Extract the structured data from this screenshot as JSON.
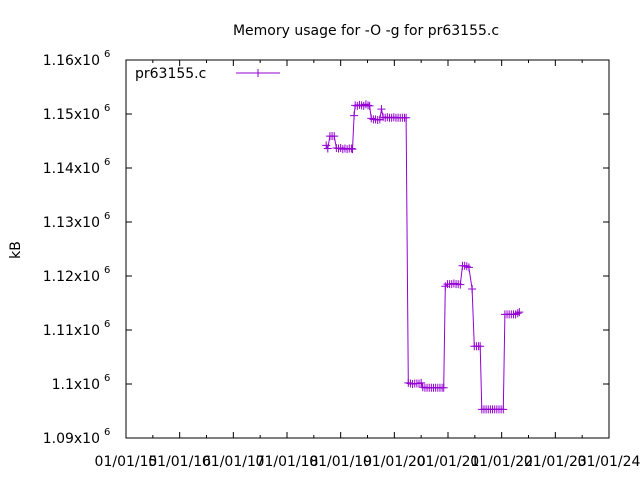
{
  "chart_data": {
    "type": "line",
    "title": "Memory usage for -O -g for pr63155.c",
    "ylabel": "kB",
    "xlabel": "",
    "ylim": [
      1090000,
      1160000
    ],
    "xlim": [
      0,
      9
    ],
    "x_tick_labels": [
      "01/01/15",
      "01/01/16",
      "01/01/17",
      "01/01/18",
      "01/01/19",
      "01/01/20",
      "01/01/21",
      "01/01/22",
      "01/01/23",
      "01/01/24"
    ],
    "y_ticks": [
      {
        "value": 1090000,
        "mantissa": "1.09x10",
        "exp": "6"
      },
      {
        "value": 1100000,
        "mantissa": "1.1x10",
        "exp": "6"
      },
      {
        "value": 1110000,
        "mantissa": "1.11x10",
        "exp": "6"
      },
      {
        "value": 1120000,
        "mantissa": "1.12x10",
        "exp": "6"
      },
      {
        "value": 1130000,
        "mantissa": "1.13x10",
        "exp": "6"
      },
      {
        "value": 1140000,
        "mantissa": "1.14x10",
        "exp": "6"
      },
      {
        "value": 1150000,
        "mantissa": "1.15x10",
        "exp": "6"
      },
      {
        "value": 1160000,
        "mantissa": "1.16x10",
        "exp": "6"
      }
    ],
    "grid": false,
    "legend_position": "top-left",
    "series": [
      {
        "name": "pr63155.c",
        "color": "#9400d3",
        "points": [
          [
            3.73,
            1144200
          ],
          [
            3.76,
            1143600
          ],
          [
            3.8,
            1145900
          ],
          [
            3.84,
            1145900
          ],
          [
            3.88,
            1145900
          ],
          [
            3.92,
            1143700
          ],
          [
            3.96,
            1143600
          ],
          [
            4.0,
            1143700
          ],
          [
            4.04,
            1143500
          ],
          [
            4.08,
            1143600
          ],
          [
            4.12,
            1143500
          ],
          [
            4.16,
            1143600
          ],
          [
            4.2,
            1143600
          ],
          [
            4.22,
            1143500
          ],
          [
            4.25,
            1149700
          ],
          [
            4.27,
            1151600
          ],
          [
            4.31,
            1151500
          ],
          [
            4.35,
            1151700
          ],
          [
            4.39,
            1151600
          ],
          [
            4.43,
            1151500
          ],
          [
            4.47,
            1151800
          ],
          [
            4.51,
            1151600
          ],
          [
            4.54,
            1151500
          ],
          [
            4.57,
            1149200
          ],
          [
            4.61,
            1149000
          ],
          [
            4.65,
            1149000
          ],
          [
            4.69,
            1148900
          ],
          [
            4.73,
            1149000
          ],
          [
            4.76,
            1150900
          ],
          [
            4.79,
            1149400
          ],
          [
            4.83,
            1149300
          ],
          [
            4.87,
            1149400
          ],
          [
            4.91,
            1149300
          ],
          [
            4.95,
            1149300
          ],
          [
            4.99,
            1149400
          ],
          [
            5.03,
            1149300
          ],
          [
            5.07,
            1149300
          ],
          [
            5.11,
            1149300
          ],
          [
            5.15,
            1149300
          ],
          [
            5.19,
            1149300
          ],
          [
            5.22,
            1149300
          ],
          [
            5.26,
            1100200
          ],
          [
            5.3,
            1100100
          ],
          [
            5.34,
            1100000
          ],
          [
            5.38,
            1100100
          ],
          [
            5.42,
            1100100
          ],
          [
            5.46,
            1100100
          ],
          [
            5.5,
            1100200
          ],
          [
            5.53,
            1099400
          ],
          [
            5.57,
            1099300
          ],
          [
            5.61,
            1099300
          ],
          [
            5.65,
            1099300
          ],
          [
            5.69,
            1099300
          ],
          [
            5.73,
            1099300
          ],
          [
            5.77,
            1099300
          ],
          [
            5.81,
            1099300
          ],
          [
            5.85,
            1099300
          ],
          [
            5.89,
            1099300
          ],
          [
            5.92,
            1099300
          ],
          [
            5.95,
            1118100
          ],
          [
            5.99,
            1118500
          ],
          [
            6.03,
            1118500
          ],
          [
            6.07,
            1118500
          ],
          [
            6.11,
            1118600
          ],
          [
            6.15,
            1118500
          ],
          [
            6.19,
            1118500
          ],
          [
            6.23,
            1118400
          ],
          [
            6.27,
            1121900
          ],
          [
            6.31,
            1121900
          ],
          [
            6.35,
            1121800
          ],
          [
            6.39,
            1121600
          ],
          [
            6.45,
            1117600
          ],
          [
            6.49,
            1107000
          ],
          [
            6.53,
            1107000
          ],
          [
            6.57,
            1107000
          ],
          [
            6.6,
            1107000
          ],
          [
            6.63,
            1095300
          ],
          [
            6.67,
            1095300
          ],
          [
            6.71,
            1095300
          ],
          [
            6.75,
            1095300
          ],
          [
            6.79,
            1095300
          ],
          [
            6.83,
            1095300
          ],
          [
            6.87,
            1095300
          ],
          [
            6.91,
            1095300
          ],
          [
            6.95,
            1095300
          ],
          [
            6.99,
            1095300
          ],
          [
            7.03,
            1095300
          ],
          [
            7.06,
            1112900
          ],
          [
            7.1,
            1112900
          ],
          [
            7.14,
            1112900
          ],
          [
            7.18,
            1112900
          ],
          [
            7.22,
            1112900
          ],
          [
            7.26,
            1112900
          ],
          [
            7.3,
            1113100
          ],
          [
            7.33,
            1113300
          ]
        ]
      }
    ]
  }
}
